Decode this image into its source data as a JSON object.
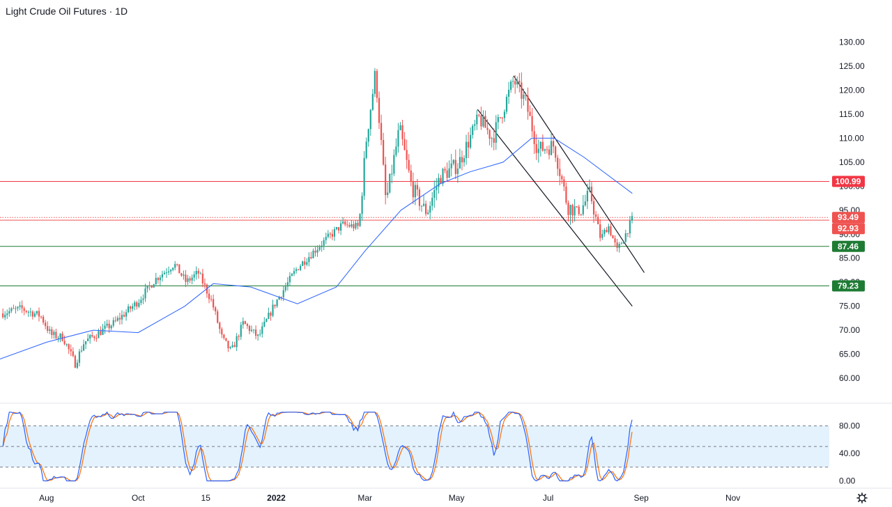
{
  "title": "Light Crude Oil Futures · 1D",
  "colors": {
    "up": "#26a69a",
    "down": "#ef5350",
    "ma": "#2962ff",
    "resistance": "#f23645",
    "support": "#1e7b34",
    "stoch_k": "#2962ff",
    "stoch_d": "#ff6d00",
    "stoch_band": "#e3f2fd"
  },
  "icons": {
    "settings": "gear-icon"
  },
  "chart_data": {
    "type": "candlestick",
    "price_axis": {
      "min": 60,
      "max": 130,
      "step": 5,
      "ticks": [
        "130.00",
        "125.00",
        "120.00",
        "115.00",
        "110.00",
        "105.00",
        "100.00",
        "95.00",
        "90.00",
        "85.00",
        "80.00",
        "75.00",
        "70.00",
        "65.00",
        "60.00"
      ]
    },
    "time_axis": {
      "labels": [
        {
          "text": "Aug",
          "bold": false
        },
        {
          "text": "Oct",
          "bold": false
        },
        {
          "text": "15",
          "bold": false
        },
        {
          "text": "2022",
          "bold": true
        },
        {
          "text": "Mar",
          "bold": false
        },
        {
          "text": "May",
          "bold": false
        },
        {
          "text": "Jul",
          "bold": false
        },
        {
          "text": "Sep",
          "bold": false
        },
        {
          "text": "Nov",
          "bold": false
        }
      ],
      "label_dates": [
        "2021-08-01",
        "2021-10-01",
        "2021-11-15",
        "2022-01-01",
        "2022-03-01",
        "2022-05-01",
        "2022-07-01",
        "2022-09-01",
        "2022-11-01"
      ]
    },
    "price_path": [
      [
        "2021-07-02",
        73.5
      ],
      [
        "2021-07-15",
        74.5
      ],
      [
        "2021-07-28",
        73.0
      ],
      [
        "2021-08-04",
        69.0
      ],
      [
        "2021-08-12",
        68.5
      ],
      [
        "2021-08-20",
        63.0
      ],
      [
        "2021-08-26",
        67.5
      ],
      [
        "2021-09-05",
        69.5
      ],
      [
        "2021-09-15",
        71.5
      ],
      [
        "2021-10-01",
        76.0
      ],
      [
        "2021-10-12",
        80.5
      ],
      [
        "2021-10-25",
        83.8
      ],
      [
        "2021-11-02",
        80.0
      ],
      [
        "2021-11-10",
        82.0
      ],
      [
        "2021-11-19",
        76.0
      ],
      [
        "2021-11-26",
        68.2
      ],
      [
        "2021-12-02",
        65.5
      ],
      [
        "2021-12-10",
        71.5
      ],
      [
        "2021-12-20",
        68.5
      ],
      [
        "2021-12-31",
        75.5
      ],
      [
        "2022-01-15",
        83.0
      ],
      [
        "2022-01-31",
        88.0
      ],
      [
        "2022-02-14",
        92.0
      ],
      [
        "2022-02-25",
        91.5
      ],
      [
        "2022-03-02",
        110.0
      ],
      [
        "2022-03-08",
        123.7
      ],
      [
        "2022-03-15",
        96.5
      ],
      [
        "2022-03-24",
        112.0
      ],
      [
        "2022-04-01",
        100.0
      ],
      [
        "2022-04-11",
        94.3
      ],
      [
        "2022-04-20",
        102.0
      ],
      [
        "2022-05-02",
        104.5
      ],
      [
        "2022-05-16",
        114.2
      ],
      [
        "2022-05-25",
        110.0
      ],
      [
        "2022-06-08",
        122.1
      ],
      [
        "2022-06-16",
        117.6
      ],
      [
        "2022-06-24",
        107.6
      ],
      [
        "2022-07-05",
        108.5
      ],
      [
        "2022-07-14",
        95.8
      ],
      [
        "2022-07-22",
        94.7
      ],
      [
        "2022-07-29",
        98.6
      ],
      [
        "2022-08-05",
        89.0
      ],
      [
        "2022-08-10",
        91.9
      ],
      [
        "2022-08-16",
        86.5
      ],
      [
        "2022-08-22",
        90.3
      ],
      [
        "2022-08-26",
        93.1
      ]
    ],
    "last_close": 93.49,
    "moving_average": {
      "name": "",
      "points": [
        [
          "2021-07-01",
          64.0
        ],
        [
          "2021-08-01",
          67.5
        ],
        [
          "2021-09-01",
          70.0
        ],
        [
          "2021-10-01",
          69.5
        ],
        [
          "2021-11-01",
          75.0
        ],
        [
          "2021-11-20",
          79.7
        ],
        [
          "2021-12-15",
          79.0
        ],
        [
          "2022-01-15",
          75.5
        ],
        [
          "2022-02-10",
          79.0
        ],
        [
          "2022-03-01",
          86.5
        ],
        [
          "2022-03-25",
          95.0
        ],
        [
          "2022-04-20",
          100.5
        ],
        [
          "2022-05-10",
          103.0
        ],
        [
          "2022-06-01",
          105.0
        ],
        [
          "2022-06-20",
          110.0
        ],
        [
          "2022-07-05",
          110.0
        ],
        [
          "2022-07-25",
          106.0
        ],
        [
          "2022-08-26",
          98.5
        ]
      ]
    },
    "horizontal_levels": [
      {
        "value": 100.99,
        "label": "100.99",
        "style": "solid",
        "color_key": "resistance"
      },
      {
        "value": 93.49,
        "label": "93.49",
        "style": "dotted",
        "color_key": "down"
      },
      {
        "value": 92.93,
        "label": "92.93",
        "style": "solid",
        "color_key": "down"
      },
      {
        "value": 87.46,
        "label": "87.46",
        "style": "solid",
        "color_key": "support"
      },
      {
        "value": 79.23,
        "label": "79.23",
        "style": "solid",
        "color_key": "support"
      }
    ],
    "trend_channel": [
      {
        "from": [
          "2022-06-08",
          123.0
        ],
        "to": [
          "2022-09-03",
          82.0
        ]
      },
      {
        "from": [
          "2022-05-15",
          116.0
        ],
        "to": [
          "2022-08-26",
          75.0
        ]
      }
    ],
    "stochastic": {
      "ticks": [
        "80.00",
        "40.00",
        "0.00"
      ],
      "axis_min": 0,
      "axis_max": 100,
      "band": [
        20,
        80
      ],
      "mid": 50
    }
  }
}
